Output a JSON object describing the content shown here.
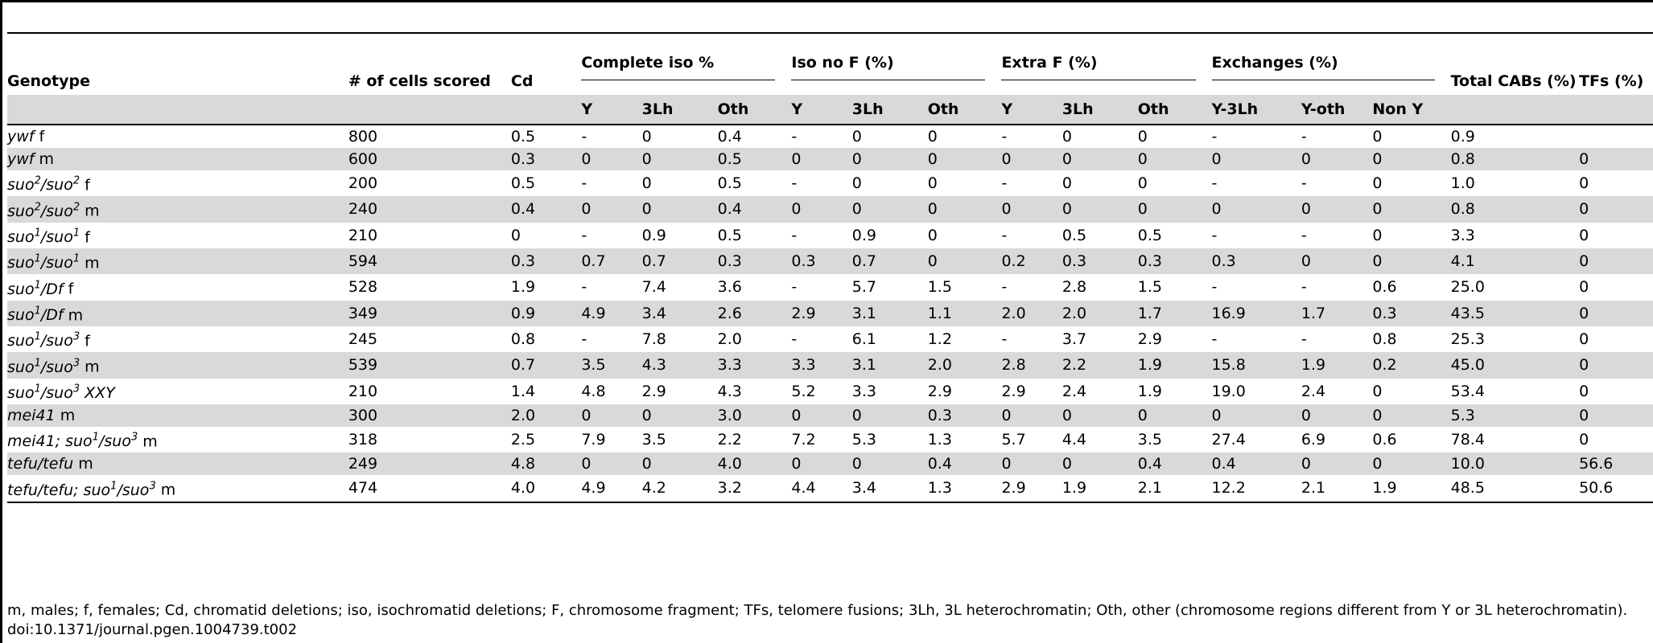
{
  "table": {
    "headers": {
      "genotype": "Genotype",
      "cells": "# of cells scored",
      "cd": "Cd",
      "complete_iso": "Complete iso %",
      "iso_no_f": "Iso no F (%)",
      "extra_f": "Extra F (%)",
      "exchanges": "Exchanges (%)",
      "total_cabs": "Total CABs (%)",
      "tfs": "TFs (%)"
    },
    "subheaders": [
      "Y",
      "3Lh",
      "Oth",
      "Y",
      "3Lh",
      "Oth",
      "Y",
      "3Lh",
      "Oth",
      "Y-3Lh",
      "Y-oth",
      "Non Y"
    ],
    "rows": [
      {
        "genotype": "ywf f",
        "cells": "800",
        "cd": "0.5",
        "v": [
          "-",
          "0",
          "0.4",
          "-",
          "0",
          "0",
          "-",
          "0",
          "0",
          "-",
          "-",
          "0"
        ],
        "total": "0.9",
        "tfs": ""
      },
      {
        "genotype": "ywf m",
        "cells": "600",
        "cd": "0.3",
        "v": [
          "0",
          "0",
          "0.5",
          "0",
          "0",
          "0",
          "0",
          "0",
          "0",
          "0",
          "0",
          "0"
        ],
        "total": "0.8",
        "tfs": "0"
      },
      {
        "genotype": "suo2/suo2 f",
        "cells": "200",
        "cd": "0.5",
        "v": [
          "-",
          "0",
          "0.5",
          "-",
          "0",
          "0",
          "-",
          "0",
          "0",
          "-",
          "-",
          "0"
        ],
        "total": "1.0",
        "tfs": "0"
      },
      {
        "genotype": "suo2/suo2 m",
        "cells": "240",
        "cd": "0.4",
        "v": [
          "0",
          "0",
          "0.4",
          "0",
          "0",
          "0",
          "0",
          "0",
          "0",
          "0",
          "0",
          "0"
        ],
        "total": "0.8",
        "tfs": "0"
      },
      {
        "genotype": "suo1/suo1 f",
        "cells": "210",
        "cd": "0",
        "v": [
          "-",
          "0.9",
          "0.5",
          "-",
          "0.9",
          "0",
          "-",
          "0.5",
          "0.5",
          "-",
          "-",
          "0"
        ],
        "total": "3.3",
        "tfs": "0"
      },
      {
        "genotype": "suo1/suo1 m",
        "cells": "594",
        "cd": "0.3",
        "v": [
          "0.7",
          "0.7",
          "0.3",
          "0.3",
          "0.7",
          "0",
          "0.2",
          "0.3",
          "0.3",
          "0.3",
          "0",
          "0"
        ],
        "total": "4.1",
        "tfs": "0"
      },
      {
        "genotype": "suo1/Df f",
        "cells": "528",
        "cd": "1.9",
        "v": [
          "-",
          "7.4",
          "3.6",
          "-",
          "5.7",
          "1.5",
          "-",
          "2.8",
          "1.5",
          "-",
          "-",
          "0.6"
        ],
        "total": "25.0",
        "tfs": "0"
      },
      {
        "genotype": "suo1/Df m",
        "cells": "349",
        "cd": "0.9",
        "v": [
          "4.9",
          "3.4",
          "2.6",
          "2.9",
          "3.1",
          "1.1",
          "2.0",
          "2.0",
          "1.7",
          "16.9",
          "1.7",
          "0.3"
        ],
        "total": "43.5",
        "tfs": "0"
      },
      {
        "genotype": "suo1/suo3 f",
        "cells": "245",
        "cd": "0.8",
        "v": [
          "-",
          "7.8",
          "2.0",
          "-",
          "6.1",
          "1.2",
          "-",
          "3.7",
          "2.9",
          "-",
          "-",
          "0.8"
        ],
        "total": "25.3",
        "tfs": "0"
      },
      {
        "genotype": "suo1/suo3 m",
        "cells": "539",
        "cd": "0.7",
        "v": [
          "3.5",
          "4.3",
          "3.3",
          "3.3",
          "3.1",
          "2.0",
          "2.8",
          "2.2",
          "1.9",
          "15.8",
          "1.9",
          "0.2"
        ],
        "total": "45.0",
        "tfs": "0"
      },
      {
        "genotype": "suo1/suo3 XXY",
        "cells": "210",
        "cd": "1.4",
        "v": [
          "4.8",
          "2.9",
          "4.3",
          "5.2",
          "3.3",
          "2.9",
          "2.9",
          "2.4",
          "1.9",
          "19.0",
          "2.4",
          "0"
        ],
        "total": "53.4",
        "tfs": "0"
      },
      {
        "genotype": "mei41 m",
        "cells": "300",
        "cd": "2.0",
        "v": [
          "0",
          "0",
          "3.0",
          "0",
          "0",
          "0.3",
          "0",
          "0",
          "0",
          "0",
          "0",
          "0"
        ],
        "total": "5.3",
        "tfs": "0"
      },
      {
        "genotype": "mei41; suo1/suo3 m",
        "cells": "318",
        "cd": "2.5",
        "v": [
          "7.9",
          "3.5",
          "2.2",
          "7.2",
          "5.3",
          "1.3",
          "5.7",
          "4.4",
          "3.5",
          "27.4",
          "6.9",
          "0.6"
        ],
        "total": "78.4",
        "tfs": "0"
      },
      {
        "genotype": "tefu/tefu m",
        "cells": "249",
        "cd": "4.8",
        "v": [
          "0",
          "0",
          "4.0",
          "0",
          "0",
          "0.4",
          "0",
          "0",
          "0.4",
          "0.4",
          "0",
          "0"
        ],
        "total": "10.0",
        "tfs": "56.6"
      },
      {
        "genotype": "tefu/tefu; suo1/suo3 m",
        "cells": "474",
        "cd": "4.0",
        "v": [
          "4.9",
          "4.2",
          "3.2",
          "4.4",
          "3.4",
          "1.3",
          "2.9",
          "1.9",
          "2.1",
          "12.2",
          "2.1",
          "1.9"
        ],
        "total": "48.5",
        "tfs": "50.6"
      }
    ]
  },
  "footnote": "m, males; f, females; Cd, chromatid deletions; iso, isochromatid deletions; F, chromosome fragment; TFs, telomere fusions; 3Lh, 3L heterochromatin; Oth, other (chromosome regions different from Y or 3L heterochromatin).",
  "doi": "doi:10.1371/journal.pgen.1004739.t002"
}
